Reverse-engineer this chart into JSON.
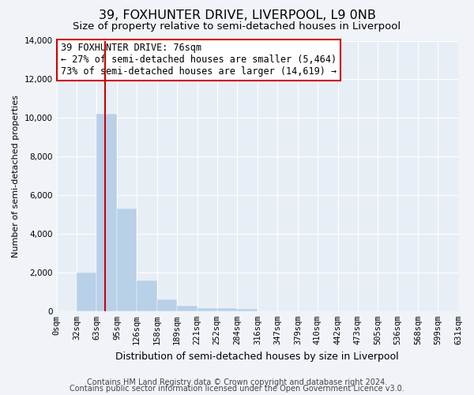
{
  "title": "39, FOXHUNTER DRIVE, LIVERPOOL, L9 0NB",
  "subtitle": "Size of property relative to semi-detached houses in Liverpool",
  "xlabel": "Distribution of semi-detached houses by size in Liverpool",
  "ylabel": "Number of semi-detached properties",
  "footer_line1": "Contains HM Land Registry data © Crown copyright and database right 2024.",
  "footer_line2": "Contains public sector information licensed under the Open Government Licence v3.0.",
  "annotation_title": "39 FOXHUNTER DRIVE: 76sqm",
  "annotation_line1": "← 27% of semi-detached houses are smaller (5,464)",
  "annotation_line2": "73% of semi-detached houses are larger (14,619) →",
  "property_size": 76,
  "bar_edges": [
    0,
    32,
    63,
    95,
    126,
    158,
    189,
    221,
    252,
    284,
    316,
    347,
    379,
    410,
    442,
    473,
    505,
    536,
    568,
    599,
    631
  ],
  "bar_heights": [
    0,
    2000,
    10200,
    5300,
    1600,
    620,
    280,
    170,
    150,
    120,
    0,
    0,
    0,
    0,
    0,
    0,
    0,
    0,
    0,
    0
  ],
  "bar_color": "#b8d0e8",
  "bar_edgecolor": "#b8d0e8",
  "vline_color": "#cc0000",
  "vline_x": 76,
  "ylim": [
    0,
    14000
  ],
  "yticks": [
    0,
    2000,
    4000,
    6000,
    8000,
    10000,
    12000,
    14000
  ],
  "bg_color": "#f0f4f8",
  "plot_bg_color": "#e8eef5",
  "grid_color": "#ffffff",
  "annotation_box_color": "#ffffff",
  "annotation_box_edgecolor": "#cc0000",
  "title_fontsize": 11.5,
  "subtitle_fontsize": 9.5,
  "xlabel_fontsize": 9,
  "ylabel_fontsize": 8,
  "tick_fontsize": 7.5,
  "annotation_fontsize": 8.5,
  "footer_fontsize": 7
}
